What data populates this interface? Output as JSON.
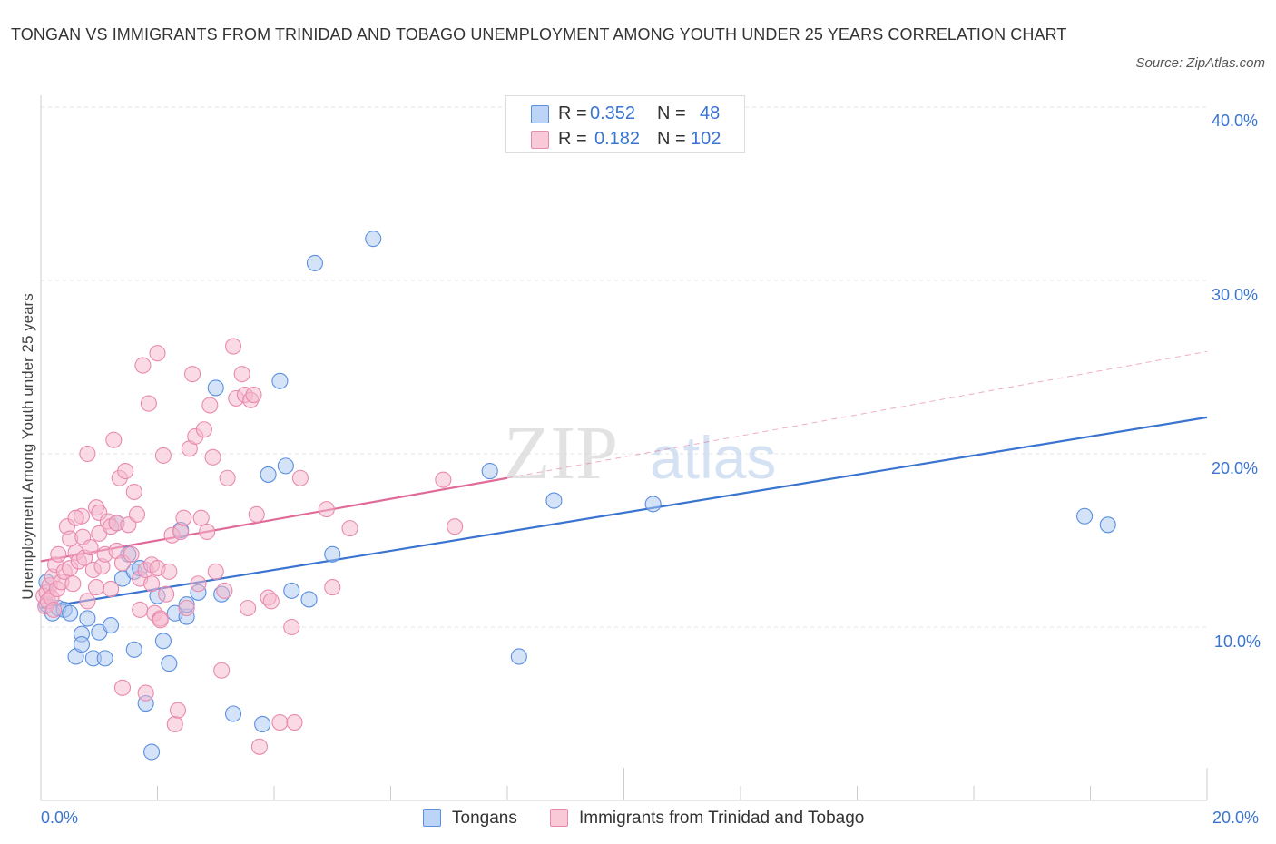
{
  "title": "TONGAN VS IMMIGRANTS FROM TRINIDAD AND TOBAGO UNEMPLOYMENT AMONG YOUTH UNDER 25 YEARS CORRELATION CHART",
  "source": "Source: ZipAtlas.com",
  "watermark": {
    "zip": "ZIP",
    "atlas": "atlas"
  },
  "legend": {
    "tongans": {
      "r_label": "R =",
      "r_value": "0.352",
      "n_label": "N =",
      "n_value": "48"
    },
    "immigrants": {
      "r_label": "R =",
      "r_value": "0.182",
      "n_label": "N =",
      "n_value": "102"
    }
  },
  "bottom_legend": {
    "tongans": "Tongans",
    "immigrants": "Immigrants from Trinidad and Tobago"
  },
  "colors": {
    "blue": "#3a74d0",
    "blue_fill": "#aac8f0",
    "pink": "#e06b98",
    "pink_fill": "#f5b8cc"
  },
  "chart_data": {
    "type": "scatter",
    "title": "TONGAN VS IMMIGRANTS FROM TRINIDAD AND TOBAGO UNEMPLOYMENT AMONG YOUTH UNDER 25 YEARS CORRELATION CHART",
    "xlabel": "",
    "ylabel": "Unemployment Among Youth under 25 years",
    "xlim": [
      0,
      20
    ],
    "ylim": [
      0,
      40
    ],
    "x_tick_labels": [
      "0.0%",
      "20.0%"
    ],
    "y_tick_labels": [
      "10.0%",
      "20.0%",
      "30.0%",
      "40.0%"
    ],
    "y_ticks": [
      10,
      20,
      30,
      40
    ],
    "grid": true,
    "legend_position": "top-center",
    "series": [
      {
        "name": "Tongans",
        "color": "#3a74d0",
        "trend": {
          "x": [
            0,
            20
          ],
          "y": [
            11.1,
            22.1
          ],
          "dashed_extension": false
        },
        "points": [
          [
            0.1,
            12.6
          ],
          [
            0.1,
            11.3
          ],
          [
            0.2,
            10.8
          ],
          [
            0.3,
            11.1
          ],
          [
            0.4,
            11.0
          ],
          [
            0.5,
            10.8
          ],
          [
            0.6,
            8.3
          ],
          [
            0.7,
            9.6
          ],
          [
            0.7,
            9.0
          ],
          [
            0.8,
            10.5
          ],
          [
            0.9,
            8.2
          ],
          [
            1.0,
            9.7
          ],
          [
            1.1,
            8.2
          ],
          [
            1.2,
            10.1
          ],
          [
            1.3,
            16.0
          ],
          [
            1.4,
            12.8
          ],
          [
            1.5,
            14.2
          ],
          [
            1.6,
            13.2
          ],
          [
            1.6,
            8.7
          ],
          [
            1.7,
            13.4
          ],
          [
            1.8,
            5.6
          ],
          [
            1.9,
            2.8
          ],
          [
            2.0,
            11.8
          ],
          [
            2.1,
            9.2
          ],
          [
            2.2,
            7.9
          ],
          [
            2.3,
            10.8
          ],
          [
            2.5,
            10.6
          ],
          [
            2.5,
            11.3
          ],
          [
            2.4,
            15.6
          ],
          [
            2.7,
            12.0
          ],
          [
            3.0,
            23.8
          ],
          [
            3.1,
            11.9
          ],
          [
            3.3,
            5.0
          ],
          [
            3.8,
            4.4
          ],
          [
            3.9,
            18.8
          ],
          [
            4.1,
            24.2
          ],
          [
            4.2,
            19.3
          ],
          [
            4.3,
            12.1
          ],
          [
            4.6,
            11.6
          ],
          [
            4.7,
            31.0
          ],
          [
            5.0,
            14.2
          ],
          [
            5.7,
            32.4
          ],
          [
            7.7,
            19.0
          ],
          [
            8.2,
            8.3
          ],
          [
            8.8,
            17.3
          ],
          [
            10.5,
            17.1
          ],
          [
            17.9,
            16.4
          ],
          [
            18.3,
            15.9
          ]
        ]
      },
      {
        "name": "Immigrants from Trinidad and Tobago",
        "color": "#e06b98",
        "trend": {
          "x": [
            0,
            8.0
          ],
          "y": [
            13.8,
            18.6
          ],
          "dashed_extension": true,
          "dashed_to": [
            20,
            25.9
          ]
        },
        "points": [
          [
            0.05,
            11.8
          ],
          [
            0.08,
            11.2
          ],
          [
            0.1,
            12.0
          ],
          [
            0.12,
            11.5
          ],
          [
            0.15,
            12.4
          ],
          [
            0.18,
            11.7
          ],
          [
            0.2,
            12.9
          ],
          [
            0.22,
            11.0
          ],
          [
            0.25,
            13.6
          ],
          [
            0.28,
            12.2
          ],
          [
            0.3,
            14.2
          ],
          [
            0.35,
            12.6
          ],
          [
            0.4,
            13.2
          ],
          [
            0.45,
            15.8
          ],
          [
            0.5,
            15.1
          ],
          [
            0.5,
            13.4
          ],
          [
            0.55,
            12.5
          ],
          [
            0.6,
            14.3
          ],
          [
            0.65,
            13.8
          ],
          [
            0.7,
            16.4
          ],
          [
            0.72,
            15.2
          ],
          [
            0.75,
            14.0
          ],
          [
            0.8,
            11.5
          ],
          [
            0.8,
            20.0
          ],
          [
            0.85,
            14.6
          ],
          [
            0.9,
            13.3
          ],
          [
            0.95,
            16.9
          ],
          [
            1.0,
            16.6
          ],
          [
            1.0,
            15.4
          ],
          [
            1.05,
            13.5
          ],
          [
            1.1,
            14.2
          ],
          [
            1.15,
            16.1
          ],
          [
            1.2,
            15.8
          ],
          [
            1.2,
            12.2
          ],
          [
            1.25,
            20.8
          ],
          [
            1.3,
            16.0
          ],
          [
            1.3,
            14.4
          ],
          [
            1.35,
            18.6
          ],
          [
            1.4,
            13.7
          ],
          [
            1.4,
            6.5
          ],
          [
            1.45,
            19.0
          ],
          [
            1.5,
            15.9
          ],
          [
            1.55,
            14.2
          ],
          [
            1.6,
            17.8
          ],
          [
            1.65,
            16.5
          ],
          [
            1.7,
            12.8
          ],
          [
            1.7,
            11.0
          ],
          [
            1.75,
            25.1
          ],
          [
            1.8,
            13.3
          ],
          [
            1.8,
            6.2
          ],
          [
            1.85,
            22.9
          ],
          [
            1.9,
            13.6
          ],
          [
            1.95,
            10.8
          ],
          [
            2.0,
            25.8
          ],
          [
            2.0,
            13.4
          ],
          [
            2.05,
            10.5
          ],
          [
            2.1,
            19.9
          ],
          [
            2.15,
            11.9
          ],
          [
            2.2,
            13.2
          ],
          [
            2.25,
            15.3
          ],
          [
            2.3,
            4.4
          ],
          [
            2.35,
            5.2
          ],
          [
            2.4,
            15.5
          ],
          [
            2.45,
            16.3
          ],
          [
            2.5,
            11.1
          ],
          [
            2.55,
            20.3
          ],
          [
            2.6,
            24.6
          ],
          [
            2.65,
            21.0
          ],
          [
            2.7,
            12.5
          ],
          [
            2.75,
            16.3
          ],
          [
            2.8,
            21.4
          ],
          [
            2.85,
            15.5
          ],
          [
            2.9,
            22.8
          ],
          [
            2.95,
            19.8
          ],
          [
            3.0,
            13.2
          ],
          [
            3.1,
            7.5
          ],
          [
            3.15,
            12.1
          ],
          [
            3.2,
            18.6
          ],
          [
            3.3,
            26.2
          ],
          [
            3.35,
            23.2
          ],
          [
            3.45,
            24.6
          ],
          [
            3.5,
            23.4
          ],
          [
            3.55,
            11.1
          ],
          [
            3.6,
            23.1
          ],
          [
            3.65,
            23.4
          ],
          [
            3.7,
            16.5
          ],
          [
            3.75,
            3.1
          ],
          [
            3.9,
            11.7
          ],
          [
            3.95,
            11.5
          ],
          [
            4.1,
            4.5
          ],
          [
            4.3,
            10.0
          ],
          [
            4.35,
            4.5
          ],
          [
            4.45,
            18.6
          ],
          [
            4.9,
            16.8
          ],
          [
            5.0,
            12.3
          ],
          [
            5.3,
            15.7
          ],
          [
            6.9,
            18.5
          ],
          [
            7.1,
            15.8
          ],
          [
            2.05,
            10.4
          ],
          [
            1.9,
            12.5
          ],
          [
            0.6,
            16.3
          ],
          [
            0.95,
            12.3
          ]
        ]
      }
    ]
  }
}
